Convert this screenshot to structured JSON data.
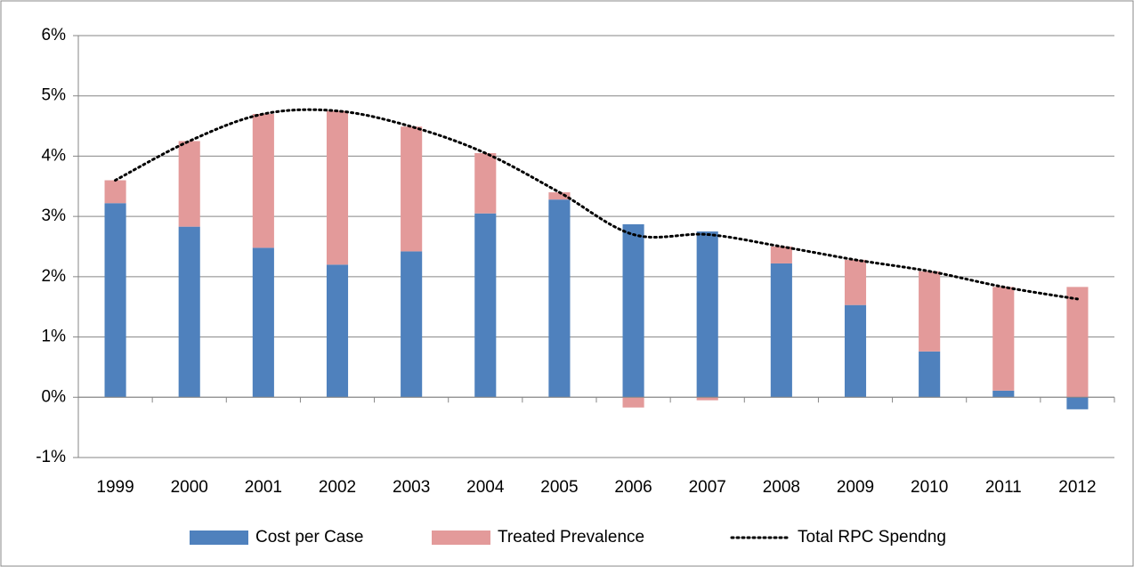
{
  "chart_data": {
    "type": "bar",
    "categories": [
      "1999",
      "2000",
      "2001",
      "2002",
      "2003",
      "2004",
      "2005",
      "2006",
      "2007",
      "2008",
      "2009",
      "2010",
      "2011",
      "2012"
    ],
    "series": [
      {
        "name": "Cost per Case",
        "type": "bar",
        "color": "#4f81bd",
        "values": [
          3.22,
          2.83,
          2.48,
          2.2,
          2.42,
          3.05,
          3.28,
          2.87,
          2.75,
          2.22,
          1.53,
          0.76,
          0.11,
          -0.2
        ]
      },
      {
        "name": "Treated Prevalence",
        "type": "bar",
        "color": "#e39a9a",
        "values": [
          0.38,
          1.42,
          2.22,
          2.55,
          2.07,
          1.0,
          0.12,
          -0.17,
          -0.05,
          0.28,
          0.75,
          1.33,
          1.72,
          1.83
        ]
      },
      {
        "name": "Total RPC Spendng",
        "type": "line",
        "color": "#000000",
        "values": [
          3.6,
          4.25,
          4.7,
          4.75,
          4.49,
          4.05,
          3.4,
          2.7,
          2.7,
          2.5,
          2.28,
          2.09,
          1.83,
          1.63
        ]
      }
    ],
    "ylim": [
      -1,
      6
    ],
    "yticks": [
      {
        "value": -1,
        "label": "-1%"
      },
      {
        "value": 0,
        "label": "0%"
      },
      {
        "value": 1,
        "label": "1%"
      },
      {
        "value": 2,
        "label": "2%"
      },
      {
        "value": 3,
        "label": "3%"
      },
      {
        "value": 4,
        "label": "4%"
      },
      {
        "value": 5,
        "label": "5%"
      },
      {
        "value": 6,
        "label": "6%"
      }
    ],
    "grid": true,
    "legend": "bottom"
  }
}
